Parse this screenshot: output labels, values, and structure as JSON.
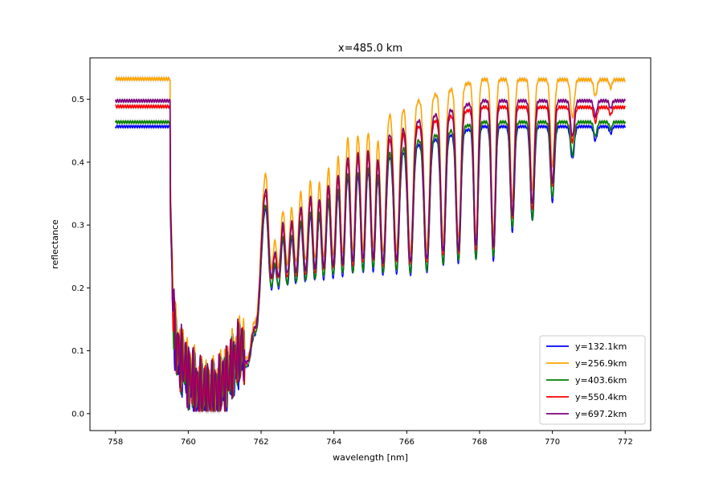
{
  "chart_data": {
    "type": "line",
    "title": "x=485.0 km",
    "xlabel": "wavelength [nm]",
    "ylabel": "reflectance",
    "xlim": [
      757.3,
      772.7
    ],
    "ylim": [
      -0.027,
      0.566
    ],
    "xticks": [
      758,
      760,
      762,
      764,
      766,
      768,
      770,
      772
    ],
    "yticks": [
      0.0,
      0.1,
      0.2,
      0.3,
      0.4,
      0.5
    ],
    "grid": false,
    "legend_position": "lower-right",
    "x_range": [
      758,
      772
    ],
    "band_color": "#c8c8c8",
    "band_halfwidth": 0.004,
    "series": [
      {
        "name": "y=132.1km",
        "color": "#0000ff",
        "continuum": 0.459,
        "slope": 0.0,
        "fine_depth": 0.035
      },
      {
        "name": "y=256.9km",
        "color": "#ffa500",
        "continuum": 0.535,
        "slope": -0.0001,
        "fine_depth": 0.04
      },
      {
        "name": "y=403.6km",
        "color": "#008000",
        "continuum": 0.466,
        "slope": 0.0,
        "fine_depth": 0.035
      },
      {
        "name": "y=550.4km",
        "color": "#ff0000",
        "continuum": 0.491,
        "slope": -0.0001,
        "fine_depth": 0.038
      },
      {
        "name": "y=697.2km",
        "color": "#800080",
        "continuum": 0.5,
        "slope": 0.0,
        "fine_depth": 0.038
      }
    ],
    "absorption_lines": [
      [
        759.64,
        0.06,
        0.06
      ],
      [
        759.98,
        0.05,
        0.06
      ],
      [
        760.27,
        0.05,
        0.06
      ],
      [
        760.56,
        0.05,
        0.06
      ],
      [
        760.84,
        0.05,
        0.06
      ],
      [
        761.12,
        0.05,
        0.06
      ],
      [
        761.4,
        0.04,
        0.06
      ],
      [
        759.78,
        0.02,
        0.06
      ],
      [
        760.1,
        0.02,
        0.06
      ],
      [
        760.42,
        0.02,
        0.06
      ],
      [
        760.7,
        0.02,
        0.06
      ],
      [
        760.98,
        0.02,
        0.06
      ],
      [
        761.26,
        0.02,
        0.06
      ],
      [
        761.66,
        0.12,
        0.55
      ],
      [
        761.88,
        0.12,
        0.55
      ],
      [
        762.28,
        0.1,
        0.58
      ],
      [
        762.48,
        0.1,
        0.58
      ],
      [
        762.72,
        0.1,
        0.58
      ],
      [
        762.96,
        0.1,
        0.58
      ],
      [
        763.22,
        0.1,
        0.58
      ],
      [
        763.48,
        0.09,
        0.58
      ],
      [
        763.72,
        0.09,
        0.58
      ],
      [
        763.98,
        0.09,
        0.58
      ],
      [
        764.24,
        0.08,
        0.58
      ],
      [
        764.52,
        0.08,
        0.58
      ],
      [
        764.8,
        0.08,
        0.58
      ],
      [
        765.08,
        0.08,
        0.58
      ],
      [
        765.35,
        0.09,
        0.62
      ],
      [
        765.72,
        0.09,
        0.62
      ],
      [
        766.1,
        0.09,
        0.65
      ],
      [
        766.55,
        0.09,
        0.65
      ],
      [
        767.0,
        0.08,
        0.62
      ],
      [
        767.42,
        0.08,
        0.62
      ],
      [
        767.9,
        0.07,
        0.62
      ],
      [
        768.38,
        0.07,
        0.62
      ],
      [
        768.9,
        0.07,
        0.45
      ],
      [
        769.45,
        0.07,
        0.4
      ],
      [
        770.0,
        0.07,
        0.3
      ],
      [
        770.55,
        0.07,
        0.12
      ],
      [
        771.18,
        0.06,
        0.05
      ],
      [
        771.6,
        0.05,
        0.025
      ]
    ]
  }
}
